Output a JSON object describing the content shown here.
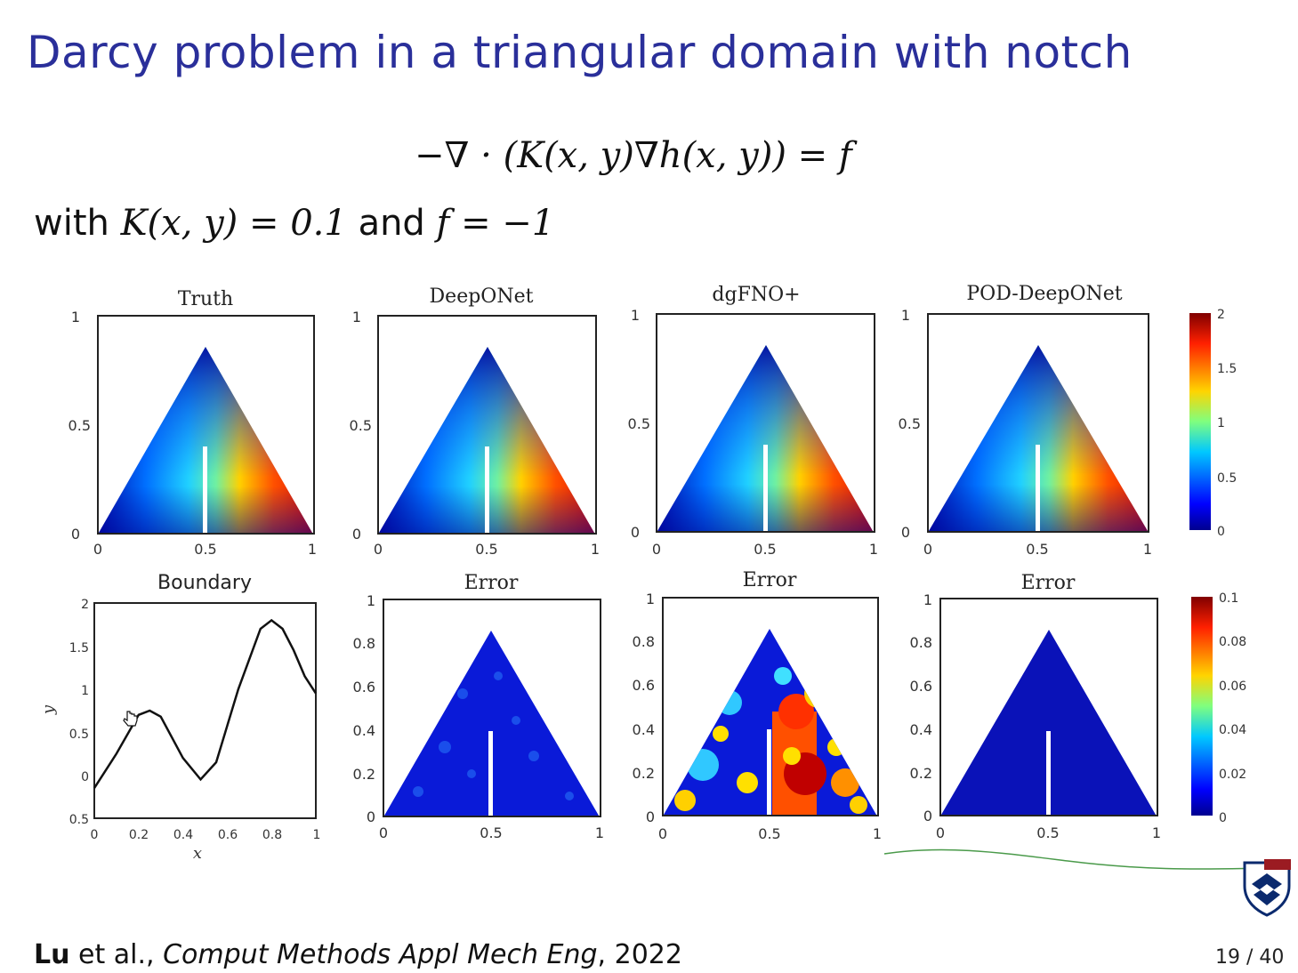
{
  "slide": {
    "title": "Darcy problem in a triangular domain with notch",
    "equation": "−∇ · (K(x, y)∇h(x, y)) = f",
    "with_prefix": "with",
    "with_k": "K(x, y) = 0.1",
    "with_and": "and",
    "with_f": "f = −1",
    "citation": {
      "author": "Lu",
      "etal": " et al., ",
      "journal": "Comput Methods Appl Mech Eng",
      "year": ", 2022"
    },
    "page": "19 / 40"
  },
  "panels": {
    "truth": "Truth",
    "deeponet": "DeepONet",
    "dgfno": "dgFNO+",
    "pod": "POD-DeepONet",
    "boundary": "Boundary",
    "error": "Error"
  },
  "ticks": {
    "top_y": [
      "1",
      "0.5",
      "0"
    ],
    "top_x": [
      "0",
      "0.5",
      "1"
    ],
    "err_y": [
      "1",
      "0.8",
      "0.6",
      "0.4",
      "0.2",
      "0"
    ],
    "cbar_top": [
      "2",
      "1.5",
      "1",
      "0.5",
      "0"
    ],
    "cbar_bottom": [
      "0.1",
      "0.08",
      "0.06",
      "0.04",
      "0.02",
      "0"
    ],
    "boundary_y": [
      "2",
      "1.5",
      "1",
      "0.5",
      "0",
      "0.5"
    ],
    "boundary_x": [
      "0",
      "0.2",
      "0.4",
      "0.6",
      "0.8",
      "1"
    ],
    "boundary_xlabel": "x",
    "boundary_ylabel": "y"
  },
  "chart_data": {
    "type": "line",
    "title": "Boundary",
    "xlabel": "x",
    "ylabel": "y",
    "xlim": [
      0,
      1
    ],
    "ylim": [
      -0.5,
      2
    ],
    "x": [
      0,
      0.1,
      0.2,
      0.25,
      0.3,
      0.4,
      0.48,
      0.55,
      0.65,
      0.75,
      0.8,
      0.85,
      0.9,
      0.95,
      1.0
    ],
    "series": [
      {
        "values": [
          -0.15,
          0.25,
          0.7,
          0.75,
          0.68,
          0.2,
          -0.05,
          0.15,
          1.0,
          1.7,
          1.8,
          1.7,
          1.45,
          1.15,
          0.95
        ]
      }
    ]
  }
}
